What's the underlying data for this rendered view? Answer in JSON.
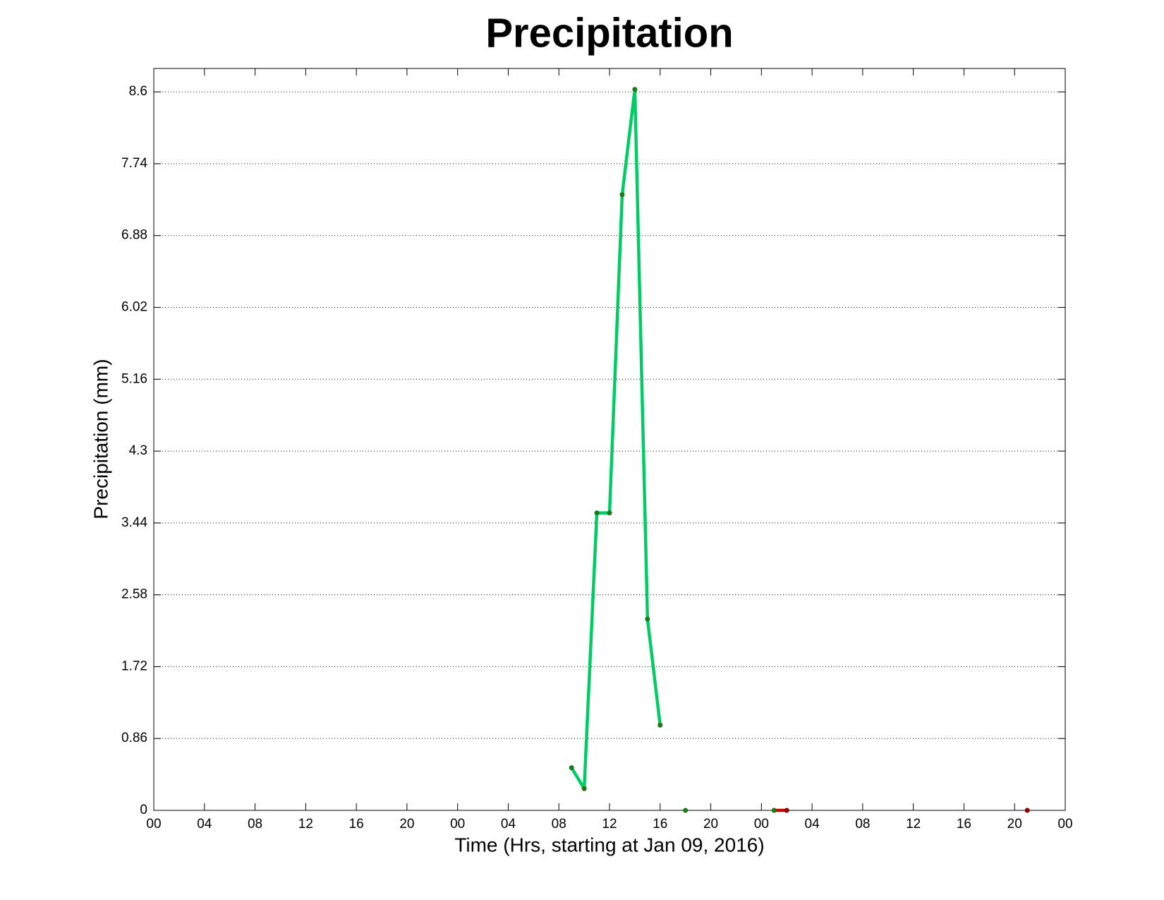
{
  "chart_data": {
    "type": "line",
    "title": "Precipitation",
    "x_label": "Time (Hrs, starting at Jan 09, 2016)",
    "y_label": "Precipitation (mm)",
    "xlim": [
      0,
      72
    ],
    "ylim": [
      0,
      8.88
    ],
    "xticks": [
      {
        "value": 0,
        "label": "00"
      },
      {
        "value": 4,
        "label": "04"
      },
      {
        "value": 8,
        "label": "08"
      },
      {
        "value": 12,
        "label": "12"
      },
      {
        "value": 16,
        "label": "16"
      },
      {
        "value": 20,
        "label": "20"
      },
      {
        "value": 24,
        "label": "00"
      },
      {
        "value": 28,
        "label": "04"
      },
      {
        "value": 32,
        "label": "08"
      },
      {
        "value": 36,
        "label": "12"
      },
      {
        "value": 40,
        "label": "16"
      },
      {
        "value": 44,
        "label": "20"
      },
      {
        "value": 48,
        "label": "00"
      },
      {
        "value": 52,
        "label": "04"
      },
      {
        "value": 56,
        "label": "08"
      },
      {
        "value": 60,
        "label": "12"
      },
      {
        "value": 64,
        "label": "16"
      },
      {
        "value": 68,
        "label": "20"
      },
      {
        "value": 72,
        "label": "00"
      }
    ],
    "yticks": [
      0,
      0.86,
      1.72,
      2.58,
      3.44,
      4.3,
      5.16,
      6.02,
      6.88,
      7.74,
      8.6
    ],
    "grid": true,
    "series": [
      {
        "color": "#00cc66",
        "marker_color": "#1a7a1a",
        "x": [
          33,
          34,
          35,
          36,
          37,
          38,
          39,
          40,
          41,
          42,
          43,
          49
        ],
        "values": [
          0.51,
          0.26,
          3.56,
          3.56,
          7.37,
          8.63,
          2.29,
          1.02,
          null,
          0,
          null,
          0
        ]
      },
      {
        "color": "#cc0000",
        "marker_color": "#8b0000",
        "x": [
          49,
          50,
          51,
          69
        ],
        "values": [
          0,
          0,
          null,
          0
        ]
      }
    ]
  }
}
